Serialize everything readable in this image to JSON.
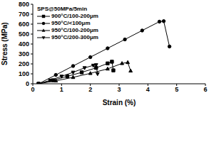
{
  "chart_data": {
    "type": "line",
    "legend_title": "SPS@50MPa/5min",
    "x_label": "Strain (%)",
    "y_label": "Stress (MPa)",
    "xlim": [
      0,
      6
    ],
    "xticks": [
      0,
      1,
      2,
      3,
      4,
      5,
      6
    ],
    "ylim": [
      0,
      800
    ],
    "yticks": [
      0,
      100,
      200,
      300,
      400,
      500,
      600,
      700,
      800
    ],
    "legend": "upper left",
    "series": [
      {
        "name": "900°C/100-200μm",
        "color": "#000000",
        "marker": "square",
        "x": [
          0.2,
          0.7,
          1.2,
          1.7,
          2.2,
          2.6,
          2.75,
          2.8
        ],
        "values": [
          0,
          35,
          75,
          115,
          160,
          205,
          222,
          135
        ]
      },
      {
        "name": "950°C/<100μm",
        "color": "#000000",
        "marker": "circle",
        "x": [
          0.2,
          0.8,
          1.4,
          2.0,
          2.6,
          3.2,
          3.8,
          4.4,
          4.55,
          4.75
        ],
        "values": [
          0,
          89,
          179,
          268,
          357,
          446,
          536,
          625,
          630,
          375
        ]
      },
      {
        "name": "950°C/100-200μm",
        "color": "#000000",
        "marker": "triangle",
        "x": [
          0.2,
          0.8,
          1.4,
          2.0,
          2.6,
          3.1,
          3.3,
          3.4
        ],
        "values": [
          0,
          30,
          65,
          105,
          150,
          205,
          215,
          130
        ]
      },
      {
        "name": "950°C/200-300μm",
        "color": "#000000",
        "marker": "triangle-down",
        "x": [
          0.2,
          0.6,
          1.0,
          1.4,
          1.8,
          2.1,
          2.2,
          2.25
        ],
        "values": [
          0,
          35,
          75,
          115,
          160,
          185,
          190,
          100
        ]
      }
    ]
  }
}
